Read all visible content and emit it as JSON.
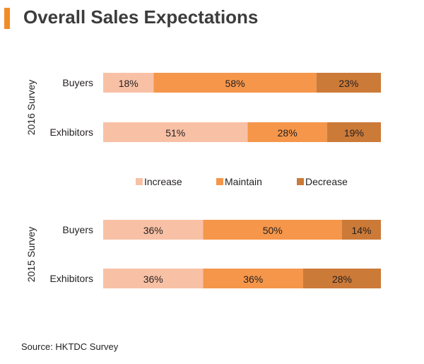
{
  "title": "Overall Sales Expectations",
  "source": "Source: HKTDC Survey",
  "colors": {
    "accent": "#f28c28",
    "increase": "#f8c1a5",
    "maintain": "#f5964a",
    "decrease": "#cc7a38"
  },
  "chart_data": {
    "type": "bar",
    "orientation": "horizontal",
    "stacked": true,
    "legend": [
      "Increase",
      "Maintain",
      "Decrease"
    ],
    "legend_position": "middle",
    "groups": [
      {
        "label": "2016 Survey",
        "rows": [
          {
            "label": "Buyers",
            "values": [
              18,
              58,
              23
            ],
            "labels": [
              "18%",
              "58%",
              "23%"
            ]
          },
          {
            "label": "Exhibitors",
            "values": [
              51,
              28,
              19
            ],
            "labels": [
              "51%",
              "28%",
              "19%"
            ]
          }
        ]
      },
      {
        "label": "2015 Survey",
        "rows": [
          {
            "label": "Buyers",
            "values": [
              36,
              50,
              14
            ],
            "labels": [
              "36%",
              "50%",
              "14%"
            ]
          },
          {
            "label": "Exhibitors",
            "values": [
              36,
              36,
              28
            ],
            "labels": [
              "36%",
              "36%",
              "28%"
            ]
          }
        ]
      }
    ]
  }
}
